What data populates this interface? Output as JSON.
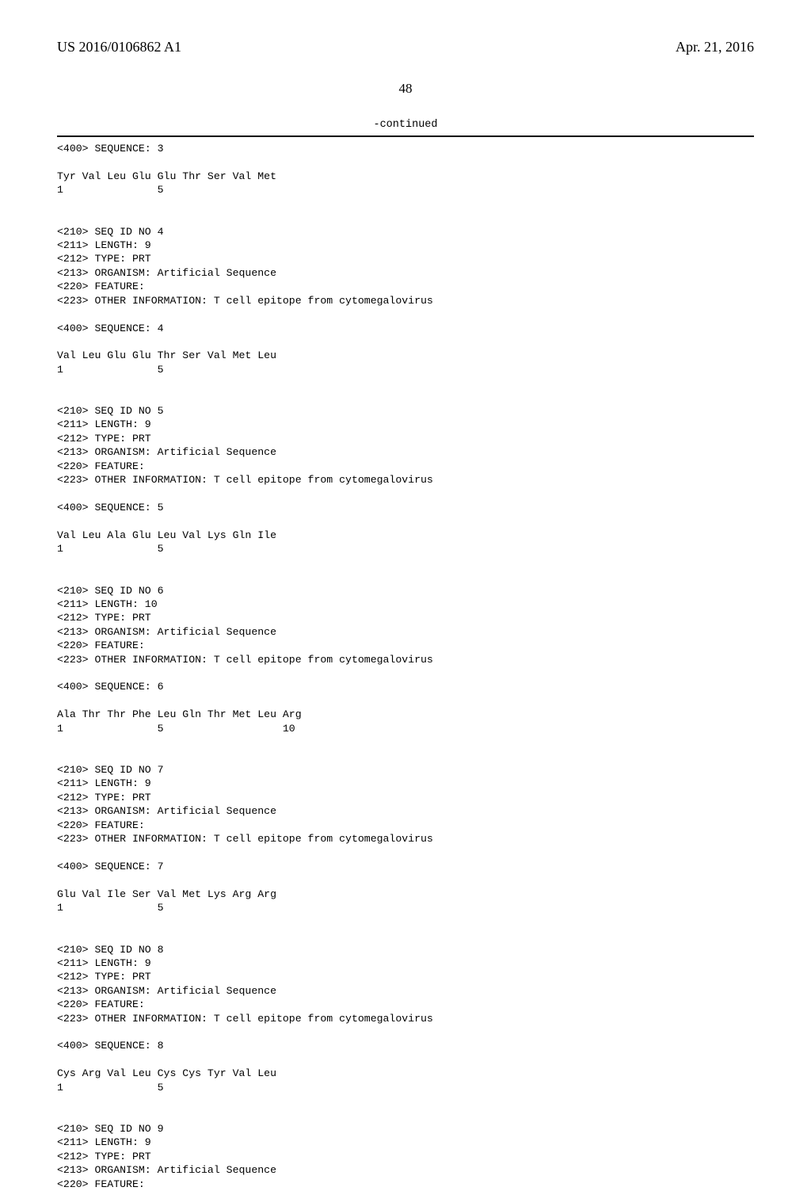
{
  "header": {
    "publication_number": "US 2016/0106862 A1",
    "publication_date": "Apr. 21, 2016"
  },
  "page_number": "48",
  "continued_label": "-continued",
  "listing_text": "<400> SEQUENCE: 3\n\nTyr Val Leu Glu Glu Thr Ser Val Met\n1               5\n\n\n<210> SEQ ID NO 4\n<211> LENGTH: 9\n<212> TYPE: PRT\n<213> ORGANISM: Artificial Sequence\n<220> FEATURE:\n<223> OTHER INFORMATION: T cell epitope from cytomegalovirus\n\n<400> SEQUENCE: 4\n\nVal Leu Glu Glu Thr Ser Val Met Leu\n1               5\n\n\n<210> SEQ ID NO 5\n<211> LENGTH: 9\n<212> TYPE: PRT\n<213> ORGANISM: Artificial Sequence\n<220> FEATURE:\n<223> OTHER INFORMATION: T cell epitope from cytomegalovirus\n\n<400> SEQUENCE: 5\n\nVal Leu Ala Glu Leu Val Lys Gln Ile\n1               5\n\n\n<210> SEQ ID NO 6\n<211> LENGTH: 10\n<212> TYPE: PRT\n<213> ORGANISM: Artificial Sequence\n<220> FEATURE:\n<223> OTHER INFORMATION: T cell epitope from cytomegalovirus\n\n<400> SEQUENCE: 6\n\nAla Thr Thr Phe Leu Gln Thr Met Leu Arg\n1               5                   10\n\n\n<210> SEQ ID NO 7\n<211> LENGTH: 9\n<212> TYPE: PRT\n<213> ORGANISM: Artificial Sequence\n<220> FEATURE:\n<223> OTHER INFORMATION: T cell epitope from cytomegalovirus\n\n<400> SEQUENCE: 7\n\nGlu Val Ile Ser Val Met Lys Arg Arg\n1               5\n\n\n<210> SEQ ID NO 8\n<211> LENGTH: 9\n<212> TYPE: PRT\n<213> ORGANISM: Artificial Sequence\n<220> FEATURE:\n<223> OTHER INFORMATION: T cell epitope from cytomegalovirus\n\n<400> SEQUENCE: 8\n\nCys Arg Val Leu Cys Cys Tyr Val Leu\n1               5\n\n\n<210> SEQ ID NO 9\n<211> LENGTH: 9\n<212> TYPE: PRT\n<213> ORGANISM: Artificial Sequence\n<220> FEATURE:"
}
